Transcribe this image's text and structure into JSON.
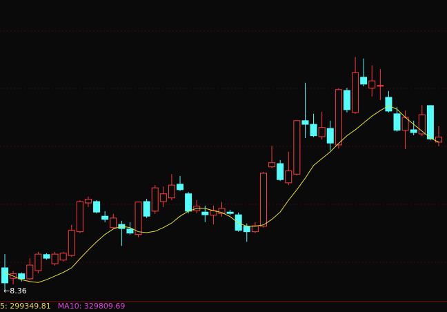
{
  "chart_data": {
    "type": "candlestick",
    "ylim": [
      8.1,
      14.7
    ],
    "up_color": "#ff3c3c",
    "down_color": "#54fcfc",
    "open": [
      8.84,
      8.61,
      8.71,
      8.6,
      8.78,
      9.13,
      8.93,
      9.01,
      9.11,
      9.63,
      10.26,
      10.29,
      9.97,
      9.72,
      9.79,
      9.69,
      9.57,
      10.29,
      10.08,
      10.29,
      10.37,
      10.67,
      10.46,
      10.09,
      10.06,
      9.99,
      10.03,
      10.06,
      10.0,
      9.75,
      9.63,
      9.75,
      11.05,
      11.12,
      10.7,
      10.89,
      12.06,
      11.98,
      11.71,
      11.89,
      11.53,
      12.72,
      12.24,
      13.01,
      12.77,
      12.83,
      12.57,
      12.21,
      11.85,
      11.86,
      11.77,
      12.39,
      11.59
    ],
    "high": [
      9.14,
      8.77,
      8.74,
      9.05,
      9.19,
      9.16,
      9.19,
      9.19,
      9.78,
      10.32,
      10.4,
      10.32,
      10.08,
      10.02,
      9.87,
      9.84,
      10.29,
      10.35,
      10.65,
      10.62,
      10.89,
      10.85,
      10.5,
      10.32,
      10.2,
      10.2,
      10.28,
      10.11,
      10.05,
      9.81,
      9.84,
      10.94,
      11.51,
      11.2,
      11.38,
      12.06,
      12.89,
      12.21,
      12.25,
      12.06,
      12.77,
      12.78,
      13.45,
      13.42,
      13.27,
      13.19,
      12.71,
      12.36,
      12.28,
      12.06,
      12.4,
      12.4,
      11.94
    ],
    "low": [
      8.36,
      8.48,
      8.54,
      8.57,
      8.72,
      9.02,
      8.89,
      8.98,
      9.08,
      9.6,
      10.17,
      10.03,
      9.84,
      9.69,
      9.32,
      9.57,
      9.51,
      9.93,
      10.02,
      10.17,
      10.32,
      10.52,
      10.03,
      10.03,
      9.84,
      9.79,
      9.96,
      9.99,
      9.63,
      9.41,
      9.6,
      9.72,
      11.02,
      10.74,
      10.65,
      10.86,
      11.68,
      11.7,
      11.65,
      11.41,
      11.45,
      12.24,
      12.21,
      12.81,
      12.59,
      12.51,
      12.24,
      11.82,
      11.44,
      11.74,
      11.72,
      11.63,
      11.5
    ],
    "close": [
      8.51,
      8.71,
      8.6,
      8.9,
      9.14,
      9.05,
      9.14,
      9.16,
      9.66,
      10.29,
      10.34,
      10.06,
      9.9,
      9.93,
      9.7,
      9.6,
      10.28,
      9.97,
      10.59,
      10.46,
      10.65,
      10.55,
      10.08,
      10.19,
      10.0,
      10.09,
      10.14,
      10.03,
      9.66,
      9.63,
      9.76,
      10.91,
      11.14,
      10.77,
      10.96,
      12.06,
      11.98,
      11.73,
      11.91,
      11.57,
      12.74,
      12.3,
      13.11,
      12.86,
      12.93,
      12.83,
      12.27,
      11.85,
      12.13,
      11.8,
      12.19,
      11.66,
      11.7
    ],
    "series": [
      {
        "color": "#e8e030",
        "values": [
          8.74,
          8.66,
          8.58,
          8.54,
          8.52,
          8.58,
          8.66,
          8.74,
          8.84,
          9.04,
          9.23,
          9.41,
          9.57,
          9.69,
          9.75,
          9.72,
          9.63,
          9.61,
          9.64,
          9.72,
          9.82,
          9.97,
          10.08,
          10.14,
          10.14,
          10.09,
          10.05,
          9.96,
          9.82,
          9.75,
          9.75,
          9.78,
          9.9,
          10.06,
          10.32,
          10.55,
          10.8,
          11.08,
          11.23,
          11.38,
          11.56,
          11.73,
          11.86,
          12.01,
          12.16,
          12.28,
          12.39,
          12.31,
          12.13,
          11.98,
          11.83,
          11.68,
          11.59
        ]
      }
    ],
    "annotation": "←8.36",
    "footer": [
      {
        "text": "5: 299349.81",
        "color": "#e8d44a"
      },
      {
        "text": "MA10: 329809.69",
        "color": "#e040e0"
      }
    ]
  }
}
